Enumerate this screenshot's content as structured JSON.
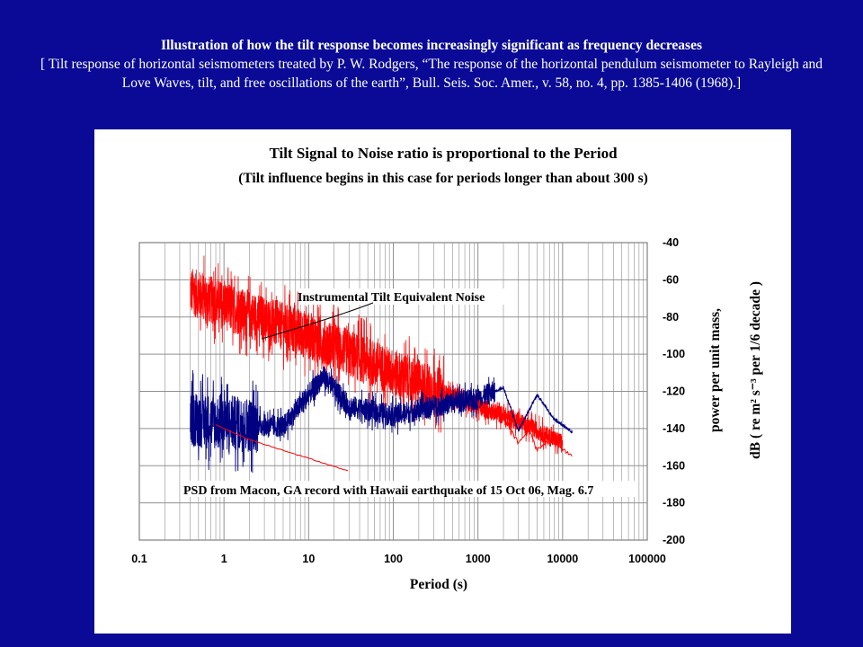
{
  "header": {
    "title": "Illustration of how the tilt response becomes increasingly significant as frequency decreases",
    "subtitle": "[ Tilt response of horizontal seismometers treated by P. W. Rodgers, “The response of the horizontal pendulum seismometer to Rayleigh and Love Waves, tilt, and free oscillations of the earth”, Bull. Seis. Soc. Amer., v. 58, no. 4, pp. 1385-1406 (1968).]"
  },
  "chart_data": {
    "type": "line",
    "title": "Tilt Signal to Noise ratio is proportional to the Period",
    "subtitle": "(Tilt influence begins in this case for periods longer than about 300 s)",
    "xlabel": "Period (s)",
    "ylabel_line1": "power per unit mass,",
    "ylabel_line2": "dB ( re m² s⁻³ per 1/6 decade )",
    "xscale": "log",
    "xlim": [
      0.1,
      100000
    ],
    "ylim": [
      -200,
      -40
    ],
    "xticks": [
      "0.1",
      "1",
      "10",
      "100",
      "1000",
      "10000",
      "100000"
    ],
    "yticks": [
      "-40",
      "-60",
      "-80",
      "-100",
      "-120",
      "-140",
      "-160",
      "-180",
      "-200"
    ],
    "grid": true,
    "annotations": [
      {
        "text": "Instrumental Tilt Equivalent Noise"
      },
      {
        "text": "PSD from Macon, GA record with Hawaii earthquake of 15 Oct 06, Mag. 6.7"
      }
    ],
    "series": [
      {
        "color": "#ff0000",
        "description_points": [
          [
            0.4,
            -66
          ],
          [
            1,
            -74
          ],
          [
            10,
            -90
          ],
          [
            100,
            -110
          ],
          [
            300,
            -119
          ],
          [
            1000,
            -128
          ],
          [
            3000,
            -136
          ],
          [
            10000,
            -148
          ]
        ]
      },
      {
        "color": "#000080",
        "description_points": [
          [
            0.4,
            -135
          ],
          [
            1,
            -137
          ],
          [
            5,
            -139
          ],
          [
            15,
            -112
          ],
          [
            30,
            -128
          ],
          [
            100,
            -133
          ],
          [
            500,
            -126
          ],
          [
            1000,
            -124
          ],
          [
            2000,
            -118
          ],
          [
            3000,
            -141
          ],
          [
            5000,
            -122
          ],
          [
            8000,
            -135
          ],
          [
            13000,
            -142
          ]
        ]
      },
      {
        "color": "#ff0000",
        "description_points": [
          [
            1000,
            -128
          ],
          [
            2000,
            -133
          ],
          [
            3000,
            -148
          ],
          [
            4000,
            -140
          ],
          [
            5000,
            -152
          ],
          [
            7000,
            -146
          ],
          [
            13000,
            -155
          ]
        ]
      },
      {
        "color": "#ff0000",
        "description_points": [
          [
            0.8,
            -138
          ],
          [
            2,
            -146
          ],
          [
            10,
            -156
          ],
          [
            30,
            -163
          ]
        ]
      }
    ]
  }
}
